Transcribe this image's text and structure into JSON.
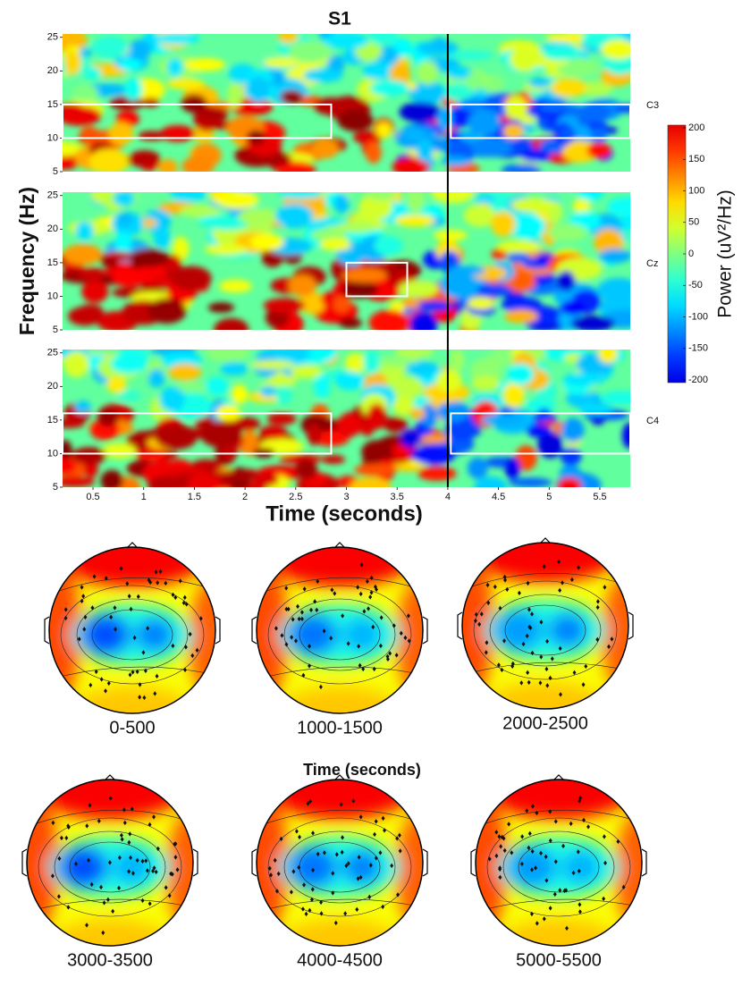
{
  "figure": {
    "title": "S1",
    "y_label": "Frequency (Hz)",
    "x_label": "Time (seconds)",
    "xlim": [
      0.2,
      5.8
    ],
    "xticks": [
      0.5,
      1,
      1.5,
      2,
      2.5,
      3,
      3.5,
      4,
      4.5,
      5,
      5.5
    ],
    "ylim": [
      5,
      25.5
    ],
    "yticks": [
      5,
      10,
      15,
      20,
      25
    ],
    "event_time": 4,
    "panels": [
      {
        "label": "C3",
        "boxes": [
          {
            "x": [
              0.2,
              2.85
            ],
            "y": [
              10,
              15
            ]
          },
          {
            "x": [
              4.03,
              5.8
            ],
            "y": [
              10,
              15
            ]
          }
        ]
      },
      {
        "label": "Cz",
        "boxes": [
          {
            "x": [
              3.0,
              3.6
            ],
            "y": [
              10,
              15
            ]
          }
        ]
      },
      {
        "label": "C4",
        "boxes": [
          {
            "x": [
              0.2,
              2.85
            ],
            "y": [
              10,
              16
            ]
          },
          {
            "x": [
              4.03,
              5.8
            ],
            "y": [
              10,
              16
            ]
          }
        ]
      }
    ],
    "colorbar": {
      "label": "Power (uV²/Hz)",
      "lim": [
        -200,
        200
      ],
      "ticks": [
        200,
        150,
        100,
        50,
        0,
        -50,
        -100,
        -150,
        -200
      ]
    }
  },
  "topomaps": {
    "x_label": "Time (seconds)",
    "labels": [
      "0-500",
      "1000-1500",
      "2000-2500",
      "3000-3500",
      "4000-4500",
      "5000-5500"
    ]
  }
}
